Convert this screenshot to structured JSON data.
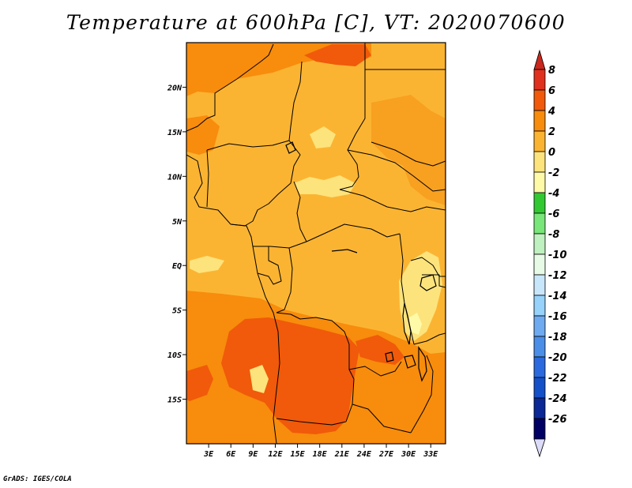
{
  "title": "Temperature at 600hPa [C], VT: 2020070600",
  "credit": "GrADS: IGES/COLA",
  "map": {
    "lon_range": [
      0,
      35
    ],
    "lat_range": [
      -20,
      25
    ],
    "x_ticks": [
      {
        "value": 3,
        "label": "3E"
      },
      {
        "value": 6,
        "label": "6E"
      },
      {
        "value": 9,
        "label": "9E"
      },
      {
        "value": 12,
        "label": "12E"
      },
      {
        "value": 15,
        "label": "15E"
      },
      {
        "value": 18,
        "label": "18E"
      },
      {
        "value": 21,
        "label": "21E"
      },
      {
        "value": 24,
        "label": "24E"
      },
      {
        "value": 27,
        "label": "27E"
      },
      {
        "value": 30,
        "label": "30E"
      },
      {
        "value": 33,
        "label": "33E"
      }
    ],
    "y_ticks": [
      {
        "value": 20,
        "label": "20N"
      },
      {
        "value": 15,
        "label": "15N"
      },
      {
        "value": 10,
        "label": "10N"
      },
      {
        "value": 5,
        "label": "5N"
      },
      {
        "value": 0,
        "label": "EQ"
      },
      {
        "value": -5,
        "label": "5S"
      },
      {
        "value": -10,
        "label": "10S"
      },
      {
        "value": -15,
        "label": "15S"
      }
    ]
  },
  "colorbar": {
    "labels": [
      "8",
      "6",
      "4",
      "2",
      "0",
      "-2",
      "-4",
      "-6",
      "-8",
      "-10",
      "-12",
      "-14",
      "-16",
      "-18",
      "-20",
      "-22",
      "-24",
      "-26"
    ],
    "colors": [
      "#e0301e",
      "#f05a0a",
      "#f88c0c",
      "#fbb432",
      "#fde37b",
      "#fffaa8",
      "#32c832",
      "#78e678",
      "#bff0bf",
      "#e6fae6",
      "#c8e6fa",
      "#96d2fa",
      "#6eaaf0",
      "#4a8ee8",
      "#2a6ade",
      "#1450c8",
      "#0a2896",
      "#000064"
    ],
    "top_arrow_color": "#c8281e",
    "bottom_arrow_color": "#dcdcf8"
  }
}
